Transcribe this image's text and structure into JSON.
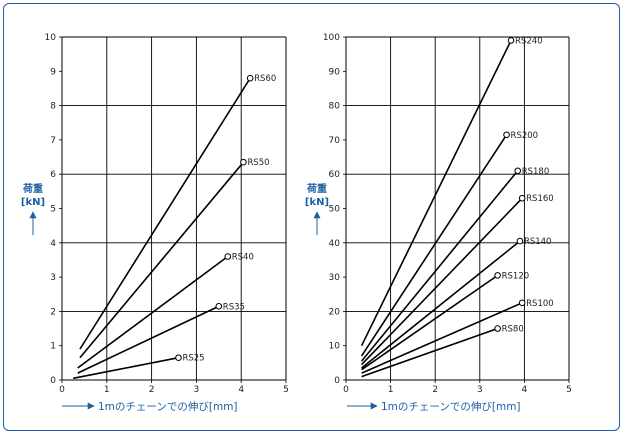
{
  "colors": {
    "accent": "#1d5fa5",
    "line": "#000000",
    "grid": "#000000"
  },
  "chart_data": [
    {
      "type": "line",
      "ylabel_line1": "荷重",
      "ylabel_line2": "[kN]",
      "xlabel": "1mのチェーンでの伸び[mm]",
      "xlim": [
        0,
        5
      ],
      "ylim": [
        0,
        10
      ],
      "xticks": [
        "0",
        "1",
        "2",
        "3",
        "4",
        "5"
      ],
      "yticks": [
        "0",
        "1",
        "2",
        "3",
        "4",
        "5",
        "6",
        "7",
        "8",
        "9",
        "10"
      ],
      "grid": true,
      "series": [
        {
          "name": "RS60",
          "x": [
            0.4,
            4.2
          ],
          "y": [
            0.9,
            8.8
          ]
        },
        {
          "name": "RS50",
          "x": [
            0.4,
            4.05
          ],
          "y": [
            0.65,
            6.35
          ]
        },
        {
          "name": "RS40",
          "x": [
            0.35,
            3.7
          ],
          "y": [
            0.35,
            3.6
          ]
        },
        {
          "name": "RS35",
          "x": [
            0.35,
            3.5
          ],
          "y": [
            0.2,
            2.15
          ]
        },
        {
          "name": "RS25",
          "x": [
            0.25,
            2.6
          ],
          "y": [
            0.05,
            0.65
          ]
        }
      ]
    },
    {
      "type": "line",
      "ylabel_line1": "荷重",
      "ylabel_line2": "[kN]",
      "xlabel": "1mのチェーンでの伸び[mm]",
      "xlim": [
        0,
        5
      ],
      "ylim": [
        0,
        100
      ],
      "xticks": [
        "0",
        "1",
        "2",
        "3",
        "4",
        "5"
      ],
      "yticks": [
        "0",
        "10",
        "20",
        "30",
        "40",
        "50",
        "60",
        "70",
        "80",
        "90",
        "100"
      ],
      "grid": true,
      "series": [
        {
          "name": "RS240",
          "x": [
            0.35,
            3.7
          ],
          "y": [
            10,
            99
          ]
        },
        {
          "name": "RS200",
          "x": [
            0.35,
            3.6
          ],
          "y": [
            7,
            71.5
          ]
        },
        {
          "name": "RS180",
          "x": [
            0.35,
            3.85
          ],
          "y": [
            5.5,
            61
          ]
        },
        {
          "name": "RS160",
          "x": [
            0.35,
            3.95
          ],
          "y": [
            4.5,
            53
          ]
        },
        {
          "name": "RS140",
          "x": [
            0.35,
            3.9
          ],
          "y": [
            3.5,
            40.5
          ]
        },
        {
          "name": "RS120",
          "x": [
            0.35,
            3.4
          ],
          "y": [
            3,
            30.5
          ]
        },
        {
          "name": "RS100",
          "x": [
            0.35,
            3.95
          ],
          "y": [
            2,
            22.5
          ]
        },
        {
          "name": "RS80",
          "x": [
            0.35,
            3.4
          ],
          "y": [
            1,
            15
          ]
        }
      ]
    }
  ]
}
